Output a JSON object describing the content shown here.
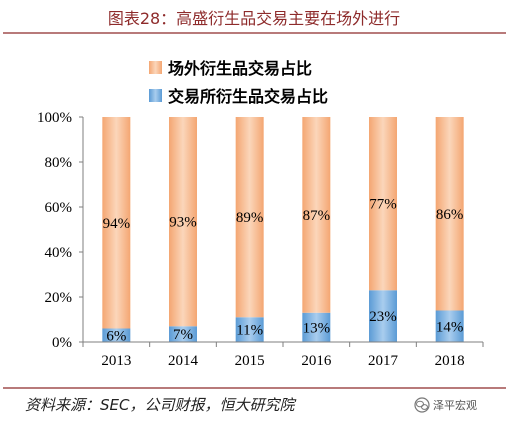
{
  "source": "资料来源：SEC，公司财报，恒大研究院",
  "watermark": "泽平宏观",
  "colors": {
    "title": "#8E2B2B",
    "rule": "#8E2B2B",
    "axis": "#7F7F7F"
  },
  "chart_data": {
    "type": "bar",
    "stacked": true,
    "title": "图表28：高盛衍生品交易主要在场外进行",
    "categories": [
      "2013",
      "2014",
      "2015",
      "2016",
      "2017",
      "2018"
    ],
    "series": [
      {
        "name": "交易所衍生品交易占比",
        "values": [
          6,
          7,
          11,
          13,
          23,
          14
        ],
        "labels": [
          "6%",
          "7%",
          "11%",
          "13%",
          "23%",
          "14%"
        ],
        "color": "#5B9BD5",
        "color_light": "#A9CDEE"
      },
      {
        "name": "场外衍生品交易占比",
        "values": [
          94,
          93,
          89,
          87,
          77,
          86
        ],
        "labels": [
          "94%",
          "93%",
          "89%",
          "87%",
          "77%",
          "86%"
        ],
        "color": "#F4A672",
        "color_light": "#FBD6BA"
      }
    ],
    "ylim": [
      0,
      100
    ],
    "yticks": [
      0,
      20,
      40,
      60,
      80,
      100
    ],
    "ytick_labels": [
      "0%",
      "20%",
      "40%",
      "60%",
      "80%",
      "100%"
    ],
    "xlabel": "",
    "ylabel": "",
    "grid": false,
    "legend_position": "top"
  }
}
